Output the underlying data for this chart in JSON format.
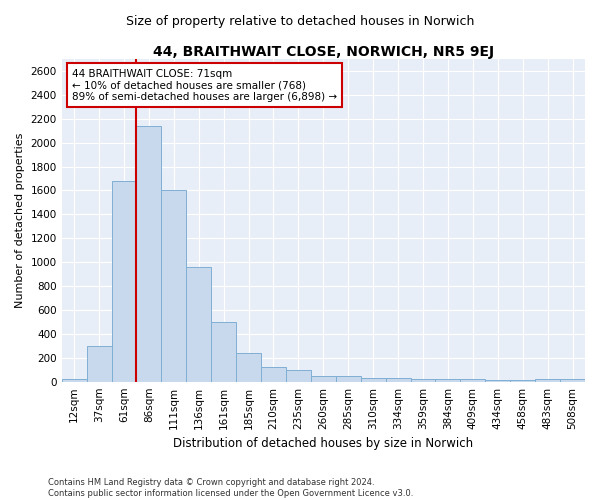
{
  "title": "44, BRAITHWAIT CLOSE, NORWICH, NR5 9EJ",
  "subtitle": "Size of property relative to detached houses in Norwich",
  "xlabel": "Distribution of detached houses by size in Norwich",
  "ylabel": "Number of detached properties",
  "categories": [
    "12sqm",
    "37sqm",
    "61sqm",
    "86sqm",
    "111sqm",
    "136sqm",
    "161sqm",
    "185sqm",
    "210sqm",
    "235sqm",
    "260sqm",
    "285sqm",
    "310sqm",
    "334sqm",
    "359sqm",
    "384sqm",
    "409sqm",
    "434sqm",
    "458sqm",
    "483sqm",
    "508sqm"
  ],
  "values": [
    25,
    300,
    1680,
    2140,
    1600,
    960,
    500,
    240,
    120,
    100,
    50,
    50,
    30,
    30,
    20,
    20,
    20,
    15,
    10,
    20,
    20
  ],
  "bar_color": "#c9d9ed",
  "bar_edgecolor": "#7fafd4",
  "vline_color": "#cc0000",
  "annotation_line1": "44 BRAITHWAIT CLOSE: 71sqm",
  "annotation_line2": "← 10% of detached houses are smaller (768)",
  "annotation_line3": "89% of semi-detached houses are larger (6,898) →",
  "annotation_box_facecolor": "#ffffff",
  "annotation_box_edgecolor": "#cc0000",
  "ylim": [
    0,
    2700
  ],
  "yticks": [
    0,
    200,
    400,
    600,
    800,
    1000,
    1200,
    1400,
    1600,
    1800,
    2000,
    2200,
    2400,
    2600
  ],
  "background_color": "#e8eef7",
  "grid_color": "#ffffff",
  "footer1": "Contains HM Land Registry data © Crown copyright and database right 2024.",
  "footer2": "Contains public sector information licensed under the Open Government Licence v3.0.",
  "title_fontsize": 10,
  "subtitle_fontsize": 9,
  "xlabel_fontsize": 8.5,
  "ylabel_fontsize": 8,
  "tick_fontsize": 7.5,
  "annotation_fontsize": 7.5,
  "footer_fontsize": 6
}
